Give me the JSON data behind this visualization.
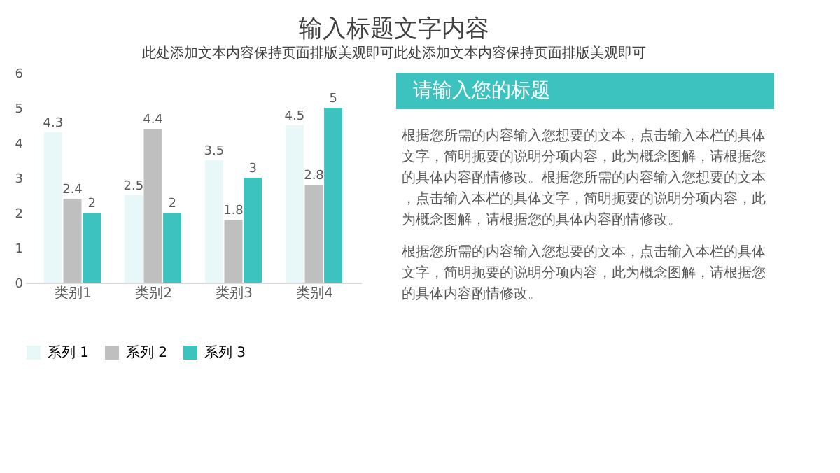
{
  "chart_data": [
    {
      "type": "bar",
      "title": "输入标题文字内容",
      "subtitle": "此处添加文本内容保持页面排版美观即可此处添加文本内容保持页面排版美观即可",
      "categories": [
        "类别1",
        "类别2",
        "类别3",
        "类别4"
      ],
      "series": [
        {
          "name": "系列 1",
          "color": "#e8f7f7",
          "values": [
            4.3,
            2.5,
            3.5,
            4.5
          ]
        },
        {
          "name": "系列 2",
          "color": "#bfbfbf",
          "values": [
            2.4,
            4.4,
            1.8,
            2.8
          ]
        },
        {
          "name": "系列 3",
          "color": "#3cc2bf",
          "values": [
            2,
            2,
            3,
            5
          ]
        }
      ],
      "ylim": [
        0,
        6
      ],
      "yticks": [
        0,
        1,
        2,
        3,
        4,
        5,
        6
      ],
      "grid": false,
      "legend": "bottom",
      "data_labels": true
    },
    {
      "type": "other",
      "title": "请输入您的标题",
      "annotations": [
        "根据您所需的内容输入您想要的文本，点击输入本栏的具体文字，简明扼要的说明分项内容，此为概念图解，请根据您的具体内容酌情修改。根据您所需的内容输入您想要的文本，点击输入本栏的具体文字，简明扼要的说明分项内容，此为概念图解，请根据您的具体内容酌情修改。",
        "根据您所需的内容输入您想要的文本，点击输入本栏的具体文字，简明扼要的说明分项内容，此为概念图解，请根据您的具体内容酌情修改。"
      ]
    }
  ]
}
